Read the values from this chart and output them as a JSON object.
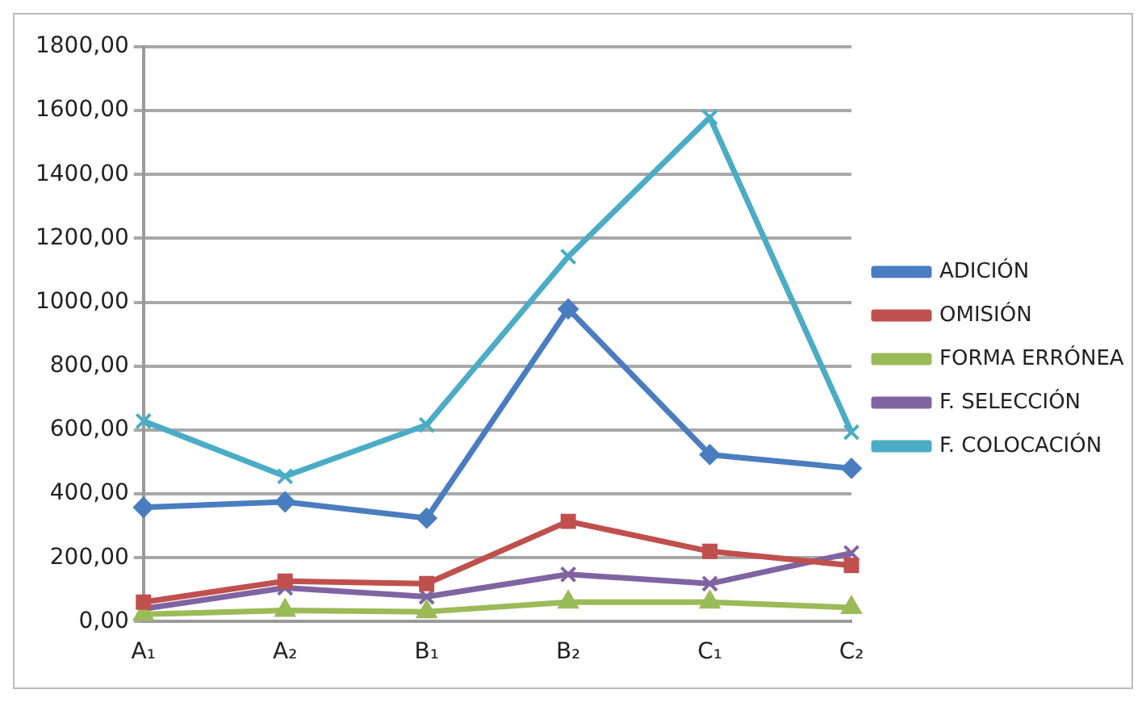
{
  "chart_data": {
    "type": "line",
    "categories": [
      "A₁",
      "A₂",
      "B₁",
      "B₂",
      "C₁",
      "C₂"
    ],
    "series": [
      {
        "name": "ADICIÓN",
        "color": "#4a7dbf",
        "marker": "diamond",
        "values": [
          358,
          375,
          324,
          979,
          523,
          480
        ]
      },
      {
        "name": "OMISIÓN",
        "color": "#c0504d",
        "marker": "square",
        "values": [
          61,
          127,
          119,
          314,
          220,
          176
        ]
      },
      {
        "name": "FORMA ERRÓNEA",
        "color": "#9bbb59",
        "marker": "triangle",
        "values": [
          23,
          35,
          31,
          61,
          61,
          44
        ]
      },
      {
        "name": "F. SELECCIÓN",
        "color": "#8064a2",
        "marker": "cross",
        "values": [
          40,
          106,
          78,
          148,
          119,
          215
        ]
      },
      {
        "name": "F. COLOCACIÓN",
        "color": "#4bacc6",
        "marker": "cross",
        "values": [
          628,
          455,
          616,
          1143,
          1579,
          593
        ]
      }
    ],
    "ylim": [
      0,
      1800
    ],
    "yticks": [
      {
        "value": 0,
        "label": "0,00"
      },
      {
        "value": 200,
        "label": "200,00"
      },
      {
        "value": 400,
        "label": "400,00"
      },
      {
        "value": 600,
        "label": "600,00"
      },
      {
        "value": 800,
        "label": "800,00"
      },
      {
        "value": 1000,
        "label": "1000,00"
      },
      {
        "value": 1200,
        "label": "1200,00"
      },
      {
        "value": 1400,
        "label": "1400,00"
      },
      {
        "value": 1600,
        "label": "1600,00"
      },
      {
        "value": 1800,
        "label": "1800,00"
      }
    ],
    "grid": "y",
    "legend": "right",
    "line_style": "solid"
  }
}
